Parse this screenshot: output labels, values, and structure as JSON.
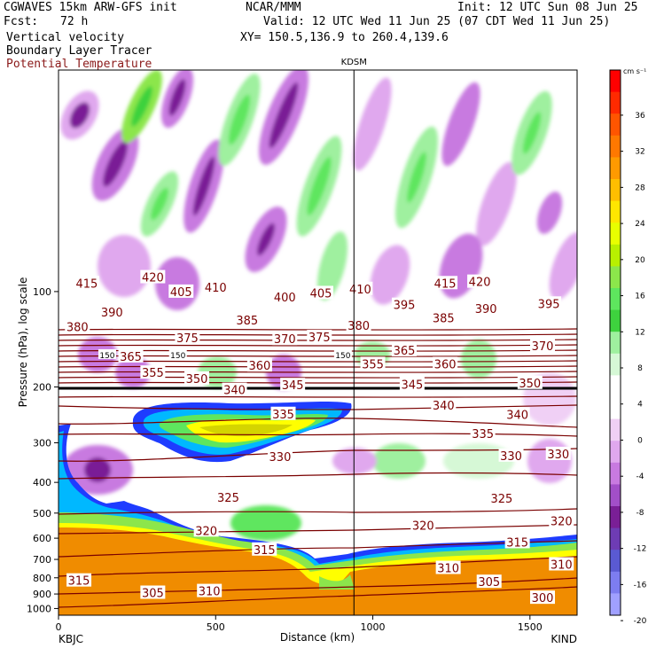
{
  "header": {
    "title": "CGWAVES 15km ARW-GFS init",
    "fcst_label": "Fcst:",
    "fcst_value": "72 h",
    "field1": "Vertical velocity",
    "field2": "Boundary Layer Tracer",
    "field3": "Potential Temperature",
    "org": "NCAR/MMM",
    "init": "Init: 12 UTC Sun 08 Jun 25",
    "valid": "Valid: 12 UTC Wed 11 Jun 25 (07 CDT Wed 11 Jun 25)",
    "xy": "XY= 150.5,136.9 to 260.4,139.6"
  },
  "colors": {
    "theta_contour": "#7a0000",
    "green": "#5ee65e",
    "light_green": "#bff5bf",
    "purple": "#7a1f96",
    "light_purple": "#e6b8f0",
    "orange": "#f08c00",
    "yellow": "#ffff00",
    "blue": "#1e3cff"
  },
  "chart_data": {
    "type": "cross-section",
    "title": "",
    "station_marker": "KDSM",
    "station_marker_x_km": 940,
    "xlabel": "Distance (km)",
    "ylabel": "Pressure (hPa), log scale",
    "xlim": [
      0,
      1650
    ],
    "ylim": [
      1050,
      20
    ],
    "y_scale": "log",
    "x_ticks": [
      0,
      500,
      1000,
      1500
    ],
    "y_ticks": [
      100,
      200,
      300,
      400,
      500,
      600,
      700,
      800,
      900,
      1000
    ],
    "x_end_labels": {
      "left": "KBJC",
      "right": "KIND"
    },
    "colorbar": {
      "unit": "cm s⁻¹",
      "labels": [
        36,
        32,
        28,
        24,
        20,
        16,
        12,
        8,
        4,
        0,
        -4,
        -8,
        -12,
        -16,
        -20
      ],
      "colors": [
        "#ff0000",
        "#ff2a00",
        "#ff5500",
        "#ff7800",
        "#ff9a00",
        "#ffbe00",
        "#ffe600",
        "#e8ff00",
        "#b8f000",
        "#8ce64b",
        "#5ee65e",
        "#3ed23e",
        "#9ff09f",
        "#d6f8d6",
        "#ffffff",
        "#ffffff",
        "#f0d0f5",
        "#e0a8ee",
        "#c87ae0",
        "#a24fc8",
        "#7a1f96",
        "#6e3cb4",
        "#5a5ad2",
        "#7d7df0",
        "#a0a0ff"
      ]
    },
    "theta_labels": [
      {
        "x": 90,
        "p": 94,
        "v": "415"
      },
      {
        "x": 300,
        "p": 90,
        "v": "420"
      },
      {
        "x": 390,
        "p": 100,
        "v": "405"
      },
      {
        "x": 500,
        "p": 97,
        "v": "410"
      },
      {
        "x": 720,
        "p": 104,
        "v": "400"
      },
      {
        "x": 835,
        "p": 101,
        "v": "405"
      },
      {
        "x": 960,
        "p": 98,
        "v": "410"
      },
      {
        "x": 1230,
        "p": 94,
        "v": "415"
      },
      {
        "x": 1340,
        "p": 93,
        "v": "420"
      },
      {
        "x": 170,
        "p": 116,
        "v": "390"
      },
      {
        "x": 60,
        "p": 129,
        "v": "380"
      },
      {
        "x": 410,
        "p": 140,
        "v": "375"
      },
      {
        "x": 600,
        "p": 123,
        "v": "385"
      },
      {
        "x": 720,
        "p": 141,
        "v": "370"
      },
      {
        "x": 830,
        "p": 139,
        "v": "375"
      },
      {
        "x": 955,
        "p": 128,
        "v": "380"
      },
      {
        "x": 1100,
        "p": 110,
        "v": "395"
      },
      {
        "x": 1225,
        "p": 121,
        "v": "385"
      },
      {
        "x": 1360,
        "p": 113,
        "v": "390"
      },
      {
        "x": 1560,
        "p": 109,
        "v": "395"
      },
      {
        "x": 230,
        "p": 160,
        "v": "365"
      },
      {
        "x": 1100,
        "p": 153,
        "v": "365"
      },
      {
        "x": 1540,
        "p": 148,
        "v": "370"
      },
      {
        "x": 300,
        "p": 180,
        "v": "355"
      },
      {
        "x": 640,
        "p": 171,
        "v": "360"
      },
      {
        "x": 1000,
        "p": 169,
        "v": "355"
      },
      {
        "x": 1230,
        "p": 169,
        "v": "360"
      },
      {
        "x": 440,
        "p": 188,
        "v": "350"
      },
      {
        "x": 560,
        "p": 204,
        "v": "340"
      },
      {
        "x": 745,
        "p": 197,
        "v": "345"
      },
      {
        "x": 1125,
        "p": 196,
        "v": "345"
      },
      {
        "x": 1500,
        "p": 194,
        "v": "350"
      },
      {
        "x": 715,
        "p": 243,
        "v": "335"
      },
      {
        "x": 1225,
        "p": 228,
        "v": "340"
      },
      {
        "x": 1460,
        "p": 244,
        "v": "340"
      },
      {
        "x": 1350,
        "p": 280,
        "v": "335"
      },
      {
        "x": 705,
        "p": 331,
        "v": "330"
      },
      {
        "x": 1440,
        "p": 329,
        "v": "330"
      },
      {
        "x": 1590,
        "p": 325,
        "v": "330"
      },
      {
        "x": 540,
        "p": 446,
        "v": "325"
      },
      {
        "x": 1410,
        "p": 449,
        "v": "325"
      },
      {
        "x": 470,
        "p": 567,
        "v": "320"
      },
      {
        "x": 1160,
        "p": 547,
        "v": "320"
      },
      {
        "x": 1600,
        "p": 529,
        "v": "320"
      },
      {
        "x": 655,
        "p": 651,
        "v": "315"
      },
      {
        "x": 1460,
        "p": 617,
        "v": "315"
      },
      {
        "x": 1240,
        "p": 744,
        "v": "310"
      },
      {
        "x": 1600,
        "p": 725,
        "v": "310"
      },
      {
        "x": 65,
        "p": 815,
        "v": "315"
      },
      {
        "x": 300,
        "p": 891,
        "v": "305"
      },
      {
        "x": 480,
        "p": 880,
        "v": "310"
      },
      {
        "x": 1370,
        "p": 823,
        "v": "305"
      },
      {
        "x": 1540,
        "p": 924,
        "v": "300"
      }
    ],
    "tropopause_labels": [
      {
        "x": 155,
        "p": 158,
        "v": "150"
      },
      {
        "x": 380,
        "p": 158,
        "v": "150"
      },
      {
        "x": 905,
        "p": 158,
        "v": "150"
      }
    ]
  }
}
